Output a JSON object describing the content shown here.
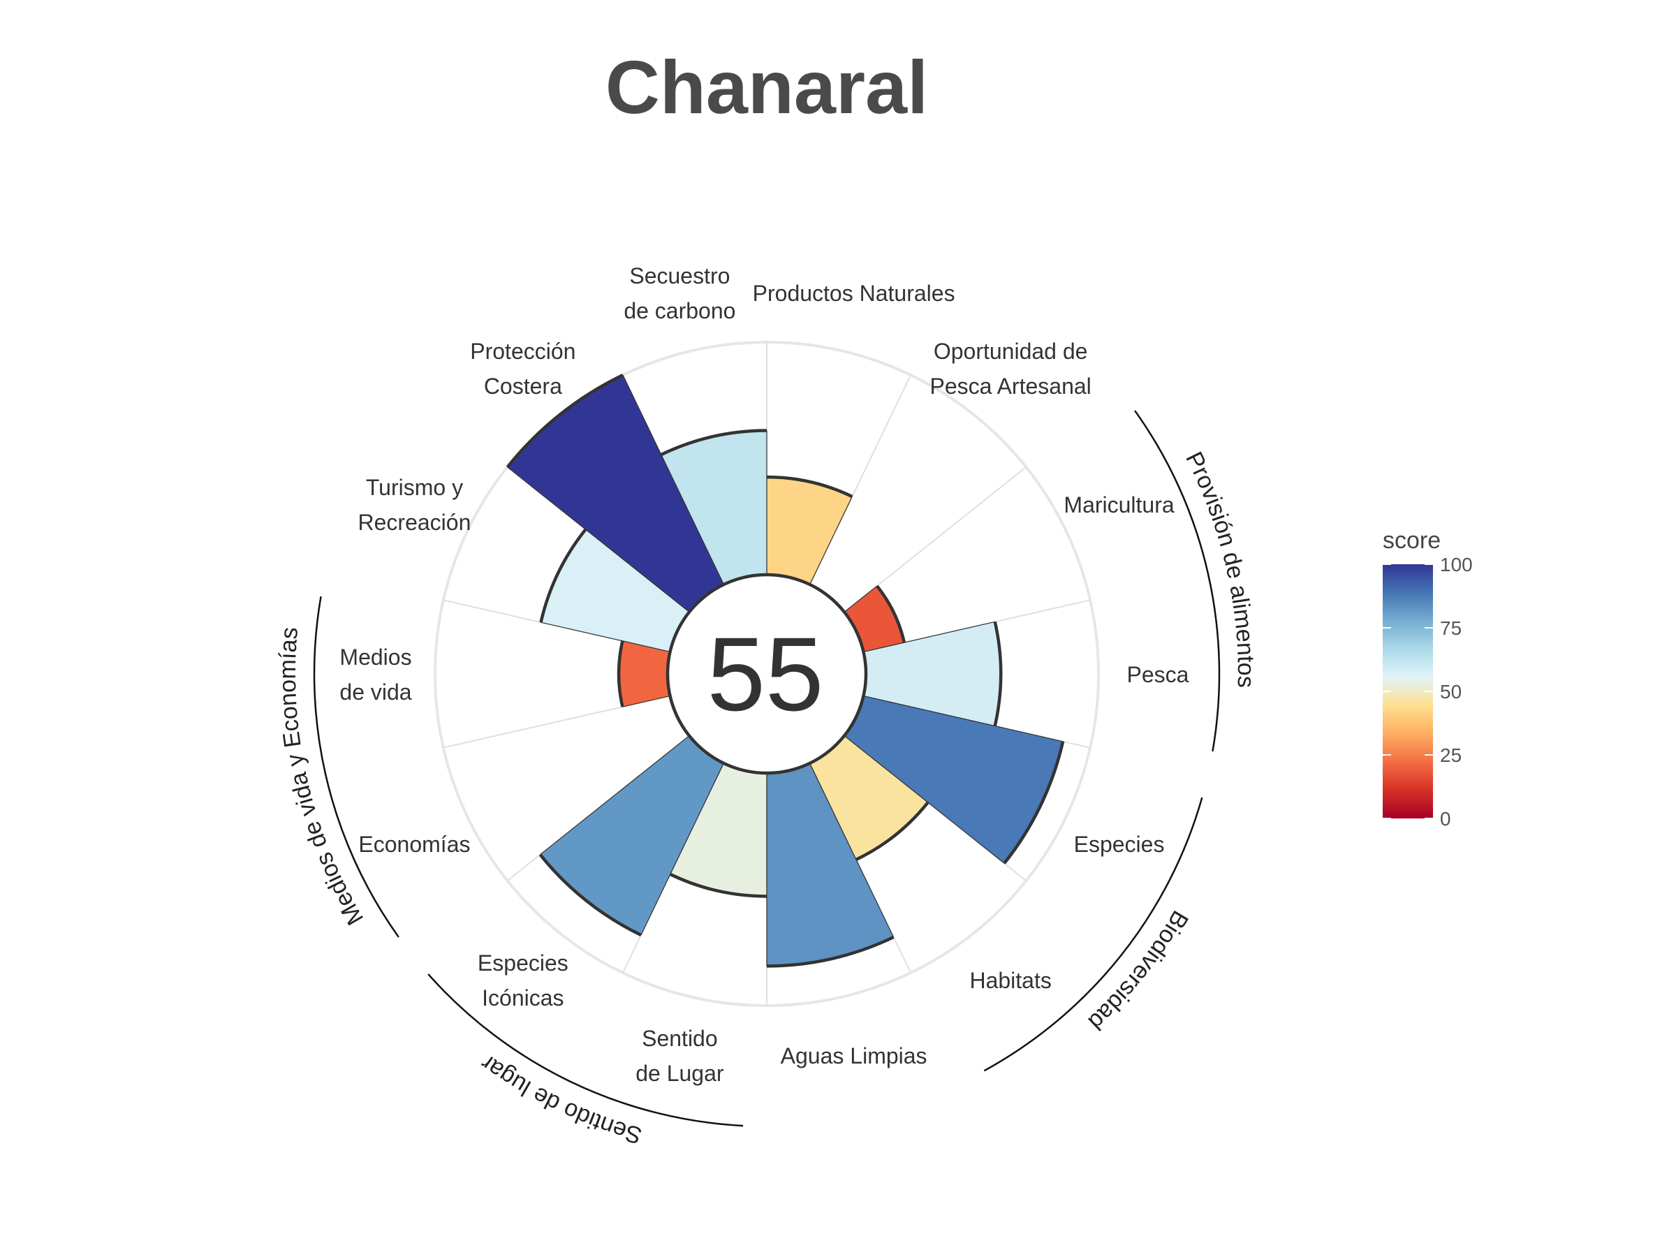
{
  "title": "Chanaral",
  "center_score": "55",
  "colors": {
    "outer_ring": "#e6e6e6",
    "spoke": "#e0e0e0",
    "bar_outline": "#333333",
    "scale": [
      "#a50026",
      "#d73027",
      "#f46d43",
      "#fdae61",
      "#fee090",
      "#e0f3f8",
      "#abd9e9",
      "#74add1",
      "#4575b4",
      "#313695"
    ]
  },
  "chart_data": {
    "type": "bar",
    "polar": true,
    "ylim": [
      0,
      100
    ],
    "categories": [
      "Pesca",
      "Maricultura",
      "Oportunidad de Pesca Artesanal",
      "Productos Naturales",
      "Secuestro de carbono",
      "Protección Costera",
      "Turismo y Recreación",
      "Medios de vida",
      "Economías",
      "Especies Icónicas",
      "Sentido de Lugar",
      "Aguas Limpias",
      "Habitats",
      "Especies"
    ],
    "labels": [
      [
        "Pesca"
      ],
      [
        "Maricultura"
      ],
      [
        "Oportunidad de",
        "Pesca Artesanal"
      ],
      [
        "Productos Naturales"
      ],
      [
        "Secuestro",
        "de carbono"
      ],
      [
        "Protección",
        "Costera"
      ],
      [
        "Turismo y",
        "Recreación"
      ],
      [
        "Medios",
        "de vida"
      ],
      [
        "Economías"
      ],
      [
        "Especies",
        "Icónicas"
      ],
      [
        "Sentido",
        "de Lugar"
      ],
      [
        "Aguas Limpias"
      ],
      [
        "Habitats"
      ],
      [
        "Especies"
      ]
    ],
    "values": [
      58,
      18,
      0,
      42,
      62,
      100,
      57,
      21,
      0,
      82,
      53,
      83,
      46,
      88
    ],
    "weights": [
      1,
      1,
      1,
      1,
      1,
      1,
      1,
      1,
      1,
      1,
      1,
      1,
      1,
      1
    ],
    "groups": [
      {
        "name": "Provisión de alimentos",
        "members": [
          "Pesca",
          "Maricultura"
        ]
      },
      {
        "name": "Biodiversidad",
        "members": [
          "Especies",
          "Habitats"
        ]
      },
      {
        "name": "Sentido de lugar",
        "members": [
          "Especies Icónicas",
          "Sentido de Lugar"
        ]
      },
      {
        "name": "Medios de vida y Economías",
        "members": [
          "Medios de vida",
          "Economías"
        ]
      }
    ],
    "legend": {
      "title": "score",
      "ticks": [
        0,
        25,
        50,
        75,
        100
      ],
      "placement": "right"
    }
  }
}
